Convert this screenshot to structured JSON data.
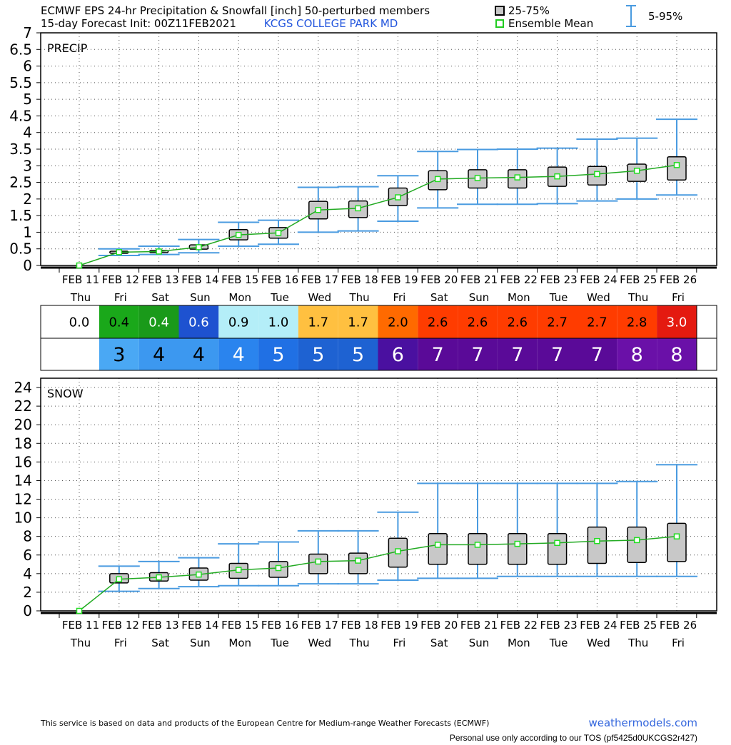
{
  "header": {
    "line1": "ECMWF EPS 24-hr Precipitation & Snowfall [inch]  50-perturbed members",
    "line2": "15-day Forecast Init: 00Z11FEB2021",
    "location": "KCGS  COLLEGE PARK   MD",
    "legend_box": "25-75%",
    "legend_mean": "Ensemble Mean",
    "legend_whisker": "5-95%"
  },
  "footer": {
    "disclaimer": "This service is based on data and products of the European Centre for Medium-range Weather Forecasts (ECMWF)",
    "site": "weathermodels.com",
    "tos": "Personal use only according to our TOS (pf5425d0UKCGS2r427)"
  },
  "colors": {
    "box_fill": "#c8c8c8",
    "mean_line": "#22aa22",
    "mean_marker": "#22dd22",
    "whisker": "#4a9be0",
    "location_text": "#2255dd"
  },
  "chart_data": [
    {
      "type": "box",
      "title": "PRECIP",
      "ylim": [
        0,
        7
      ],
      "yticks": [
        "0",
        "0.5",
        "1",
        "1.5",
        "2",
        "2.5",
        "3",
        "3.5",
        "4",
        "4.5",
        "5",
        "5.5",
        "6",
        "6.5",
        "7"
      ],
      "categories": [
        "FEB 11",
        "FEB 12",
        "FEB 13",
        "FEB 14",
        "FEB 15",
        "FEB 16",
        "FEB 17",
        "FEB 18",
        "FEB 19",
        "FEB 20",
        "FEB 21",
        "FEB 22",
        "FEB 23",
        "FEB 24",
        "FEB 25",
        "FEB 26"
      ],
      "weekdays": [
        "Thu",
        "Fri",
        "Sat",
        "Sun",
        "Mon",
        "Tue",
        "Wed",
        "Thu",
        "Fri",
        "Sat",
        "Sun",
        "Mon",
        "Tue",
        "Wed",
        "Thu",
        "Fri"
      ],
      "grid": true,
      "mean": [
        0,
        0.4,
        0.42,
        0.55,
        0.92,
        0.98,
        1.67,
        1.72,
        2.05,
        2.6,
        2.63,
        2.65,
        2.68,
        2.75,
        2.85,
        3.02
      ],
      "p25": [
        0,
        0.37,
        0.39,
        0.49,
        0.77,
        0.82,
        1.4,
        1.44,
        1.8,
        2.28,
        2.33,
        2.33,
        2.38,
        2.42,
        2.53,
        2.57
      ],
      "p75": [
        0,
        0.43,
        0.45,
        0.62,
        1.08,
        1.14,
        1.93,
        1.94,
        2.33,
        2.85,
        2.88,
        2.88,
        2.96,
        2.98,
        3.05,
        3.27
      ],
      "p5": [
        0,
        0.3,
        0.33,
        0.38,
        0.58,
        0.64,
        1.0,
        1.04,
        1.33,
        1.73,
        1.84,
        1.84,
        1.86,
        1.94,
        2.0,
        2.12
      ],
      "p95": [
        0,
        0.5,
        0.58,
        0.78,
        1.3,
        1.36,
        2.35,
        2.37,
        2.7,
        3.43,
        3.49,
        3.5,
        3.53,
        3.8,
        3.83,
        4.4
      ]
    },
    {
      "type": "box",
      "title": "SNOW",
      "ylim": [
        0,
        25
      ],
      "yticks": [
        "0",
        "2",
        "4",
        "6",
        "8",
        "10",
        "12",
        "14",
        "16",
        "18",
        "20",
        "22",
        "24"
      ],
      "categories": [
        "FEB 11",
        "FEB 12",
        "FEB 13",
        "FEB 14",
        "FEB 15",
        "FEB 16",
        "FEB 17",
        "FEB 18",
        "FEB 19",
        "FEB 20",
        "FEB 21",
        "FEB 22",
        "FEB 23",
        "FEB 24",
        "FEB 25",
        "FEB 26"
      ],
      "weekdays": [
        "Thu",
        "Fri",
        "Sat",
        "Sun",
        "Mon",
        "Tue",
        "Wed",
        "Thu",
        "Fri",
        "Sat",
        "Sun",
        "Mon",
        "Tue",
        "Wed",
        "Thu",
        "Fri"
      ],
      "grid": true,
      "mean": [
        0,
        3.4,
        3.6,
        3.9,
        4.4,
        4.6,
        5.3,
        5.4,
        6.4,
        7.1,
        7.1,
        7.2,
        7.3,
        7.5,
        7.6,
        8.0
      ],
      "p25": [
        0,
        3.0,
        3.2,
        3.3,
        3.5,
        3.6,
        4.0,
        4.0,
        4.7,
        5.0,
        5.0,
        5.0,
        5.0,
        5.1,
        5.2,
        5.3
      ],
      "p75": [
        0,
        4.0,
        4.1,
        4.6,
        5.1,
        5.3,
        6.1,
        6.2,
        7.8,
        8.3,
        8.3,
        8.3,
        8.3,
        9.0,
        9.0,
        9.4
      ],
      "p5": [
        0,
        2.1,
        2.4,
        2.6,
        2.7,
        2.7,
        2.9,
        2.9,
        3.3,
        3.5,
        3.5,
        3.7,
        3.7,
        3.7,
        3.7,
        3.7
      ],
      "p95": [
        0,
        4.8,
        5.3,
        5.7,
        7.2,
        7.4,
        8.6,
        8.6,
        10.6,
        13.7,
        13.7,
        13.7,
        13.7,
        13.7,
        13.9,
        15.7
      ]
    }
  ],
  "table": {
    "precip_row": [
      {
        "text": "0.0",
        "bg": "#ffffff",
        "fg": "#000000"
      },
      {
        "text": "0.4",
        "bg": "#1aa81a",
        "fg": "#000000"
      },
      {
        "text": "0.4",
        "bg": "#1a9a1a",
        "fg": "#ffffff"
      },
      {
        "text": "0.6",
        "bg": "#1e52d0",
        "fg": "#ffffff"
      },
      {
        "text": "0.9",
        "bg": "#b4eef8",
        "fg": "#000000"
      },
      {
        "text": "1.0",
        "bg": "#b4eef8",
        "fg": "#000000"
      },
      {
        "text": "1.7",
        "bg": "#ffc040",
        "fg": "#000000"
      },
      {
        "text": "1.7",
        "bg": "#ffc040",
        "fg": "#000000"
      },
      {
        "text": "2.0",
        "bg": "#ff6a00",
        "fg": "#000000"
      },
      {
        "text": "2.6",
        "bg": "#ff3c00",
        "fg": "#000000"
      },
      {
        "text": "2.6",
        "bg": "#ff3c00",
        "fg": "#000000"
      },
      {
        "text": "2.6",
        "bg": "#ff3c00",
        "fg": "#000000"
      },
      {
        "text": "2.7",
        "bg": "#ff3c00",
        "fg": "#000000"
      },
      {
        "text": "2.7",
        "bg": "#ff3c00",
        "fg": "#000000"
      },
      {
        "text": "2.8",
        "bg": "#ff3c00",
        "fg": "#000000"
      },
      {
        "text": "3.0",
        "bg": "#e41a10",
        "fg": "#ffffff"
      }
    ],
    "snow_row": [
      {
        "text": "",
        "bg": "#ffffff",
        "fg": "#000000"
      },
      {
        "text": "3",
        "bg": "#4aa8f4",
        "fg": "#000000"
      },
      {
        "text": "4",
        "bg": "#3c98f0",
        "fg": "#000000"
      },
      {
        "text": "4",
        "bg": "#3c98f0",
        "fg": "#000000"
      },
      {
        "text": "4",
        "bg": "#2a84ee",
        "fg": "#ffffff"
      },
      {
        "text": "5",
        "bg": "#2070e4",
        "fg": "#ffffff"
      },
      {
        "text": "5",
        "bg": "#1e62d2",
        "fg": "#ffffff"
      },
      {
        "text": "5",
        "bg": "#1e62d2",
        "fg": "#ffffff"
      },
      {
        "text": "6",
        "bg": "#4a10a0",
        "fg": "#ffffff"
      },
      {
        "text": "7",
        "bg": "#5a0a98",
        "fg": "#ffffff"
      },
      {
        "text": "7",
        "bg": "#5a0a98",
        "fg": "#ffffff"
      },
      {
        "text": "7",
        "bg": "#5a0a98",
        "fg": "#ffffff"
      },
      {
        "text": "7",
        "bg": "#5a0a98",
        "fg": "#ffffff"
      },
      {
        "text": "7",
        "bg": "#5a0a98",
        "fg": "#ffffff"
      },
      {
        "text": "8",
        "bg": "#6a10a8",
        "fg": "#ffffff"
      },
      {
        "text": "8",
        "bg": "#6a10a8",
        "fg": "#ffffff"
      }
    ]
  }
}
